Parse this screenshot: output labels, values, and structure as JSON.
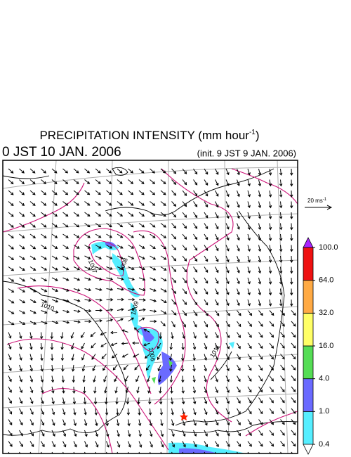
{
  "header": {
    "title_main": "PRECIPITATION INTENSITY (mm hour",
    "title_sup": "-1",
    "title_end": ")",
    "valid_time": "0 JST 10 JAN. 2006",
    "init_time": "(init. 9 JST 9 JAN. 2006)"
  },
  "vector_scale": {
    "label": "20 ms",
    "sup": "-1"
  },
  "contour_labels": [
    1007,
    1008,
    1010,
    1009,
    1006,
    1011
  ],
  "colorbar": {
    "levels": [
      {
        "value": 0.4,
        "label": "0.4"
      },
      {
        "value": 1,
        "label": "1.0"
      },
      {
        "value": 4,
        "label": "4.0"
      },
      {
        "value": 16,
        "label": "16.0"
      },
      {
        "value": 32,
        "label": "32.0"
      },
      {
        "value": 64,
        "label": "64.0"
      },
      {
        "value": 100,
        "label": "100.0"
      }
    ],
    "colors": [
      "#55eeff",
      "#6a6aff",
      "#55dd55",
      "#ffff66",
      "#ffaa44",
      "#ee1111"
    ],
    "under_color": "#ffffff",
    "over_color": "#aa22ff"
  }
}
